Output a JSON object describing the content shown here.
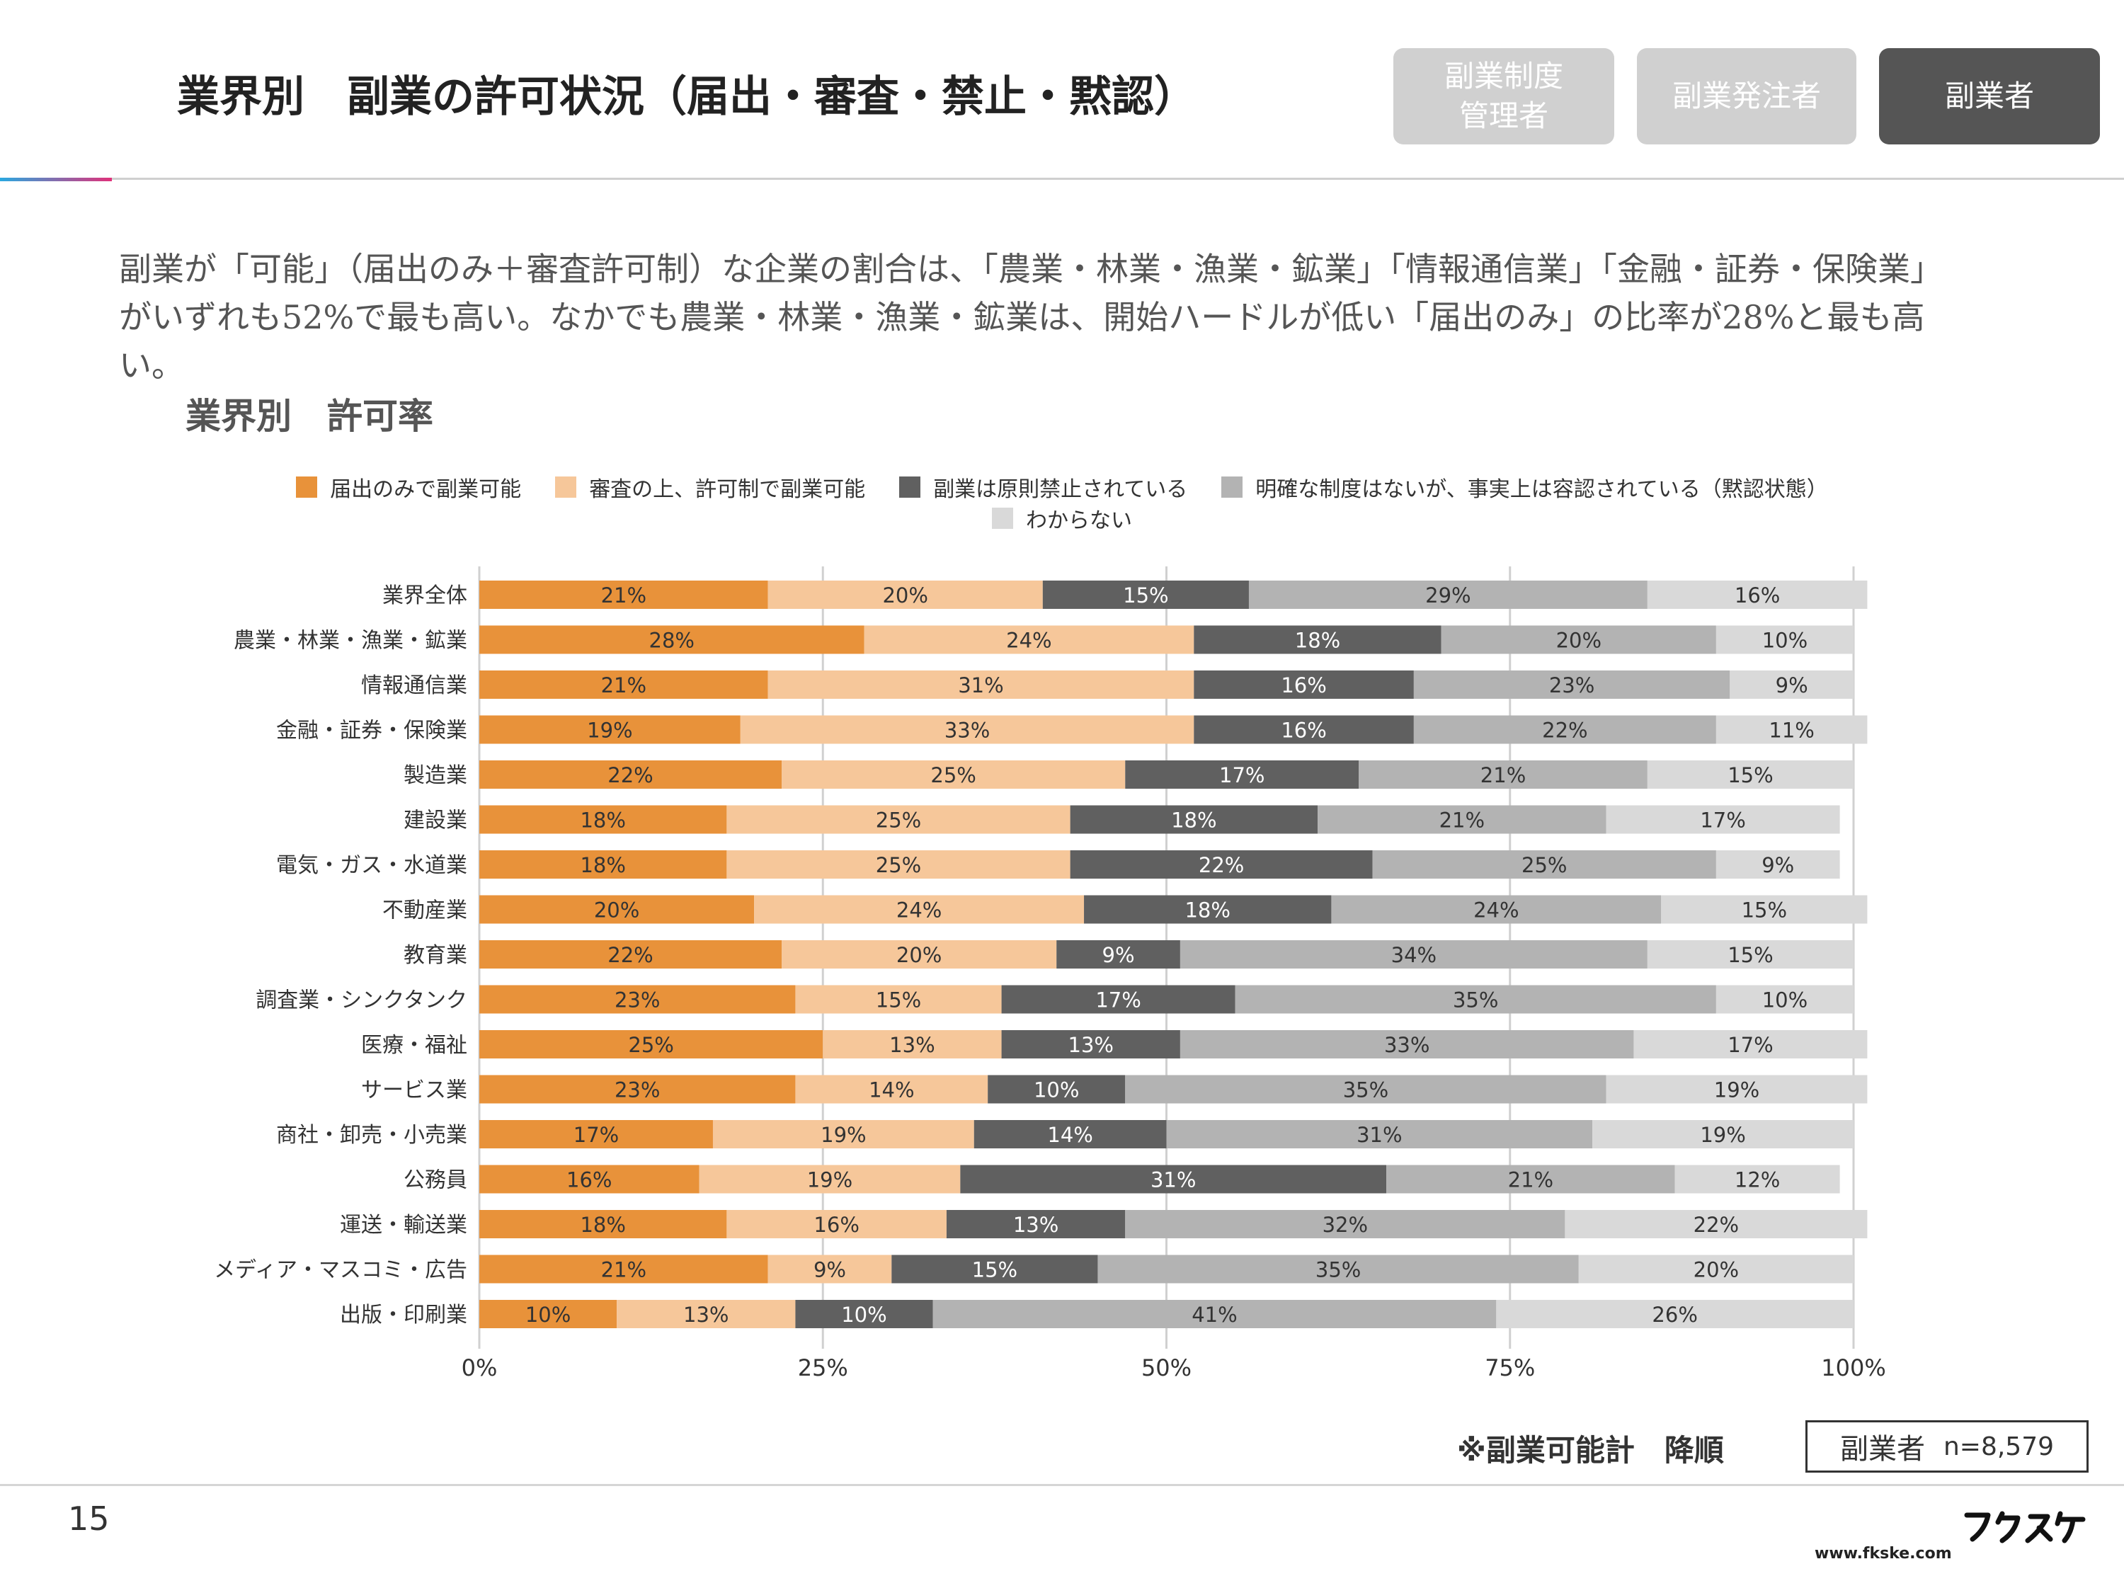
{
  "header": {
    "title": "業界別　副業の許可状況（届出・審査・禁止・黙認）",
    "tabs": [
      {
        "label": "副業制度\n管理者",
        "active": false
      },
      {
        "label": "副業発注者",
        "active": false
      },
      {
        "label": "副業者",
        "active": true
      }
    ]
  },
  "lead_text": "副業が「可能」（届出のみ＋審査許可制）な企業の割合は、「農業・林業・漁業・鉱業」「情報通信業」「金融・証券・保険業」がいずれも52%で最も高い。なかでも農業・林業・漁業・鉱業は、開始ハードルが低い「届出のみ」の比率が28%と最も高い。",
  "chart_heading": "業界別　許可率",
  "chart_data": {
    "type": "bar",
    "orientation": "horizontal",
    "stacked": true,
    "categories": [
      "業界全体",
      "農業・林業・漁業・鉱業",
      "情報通信業",
      "金融・証券・保険業",
      "製造業",
      "建設業",
      "電気・ガス・水道業",
      "不動産業",
      "教育業",
      "調査業・シンクタンク",
      "医療・福祉",
      "サービス業",
      "商社・卸売・小売業",
      "公務員",
      "運送・輸送業",
      "メディア・マスコミ・広告",
      "出版・印刷業"
    ],
    "series": [
      {
        "name": "届出のみで副業可能",
        "color": "#e8923a",
        "values": [
          21,
          28,
          21,
          19,
          22,
          18,
          18,
          20,
          22,
          23,
          25,
          23,
          17,
          16,
          18,
          21,
          10
        ]
      },
      {
        "name": "審査の上、許可制で副業可能",
        "color": "#f6c79a",
        "values": [
          20,
          24,
          31,
          33,
          25,
          25,
          25,
          24,
          20,
          15,
          13,
          14,
          19,
          19,
          16,
          9,
          13
        ]
      },
      {
        "name": "副業は原則禁止されている",
        "color": "#606060",
        "values": [
          15,
          18,
          16,
          16,
          17,
          18,
          22,
          18,
          9,
          17,
          13,
          10,
          14,
          31,
          13,
          15,
          10
        ]
      },
      {
        "name": "明確な制度はないが、事実上は容認されている（黙認状態）",
        "color": "#b3b3b3",
        "values": [
          29,
          20,
          23,
          22,
          21,
          21,
          25,
          24,
          34,
          35,
          33,
          35,
          31,
          21,
          32,
          35,
          41
        ]
      },
      {
        "name": "わからない",
        "color": "#d9d9d9",
        "values": [
          16,
          10,
          9,
          11,
          15,
          17,
          9,
          15,
          15,
          10,
          17,
          19,
          19,
          12,
          22,
          20,
          26
        ]
      }
    ],
    "xlim": [
      0,
      100
    ],
    "xticks": [
      "0%",
      "25%",
      "50%",
      "75%",
      "100%"
    ],
    "grid": true,
    "legend_position": "top"
  },
  "sort_note": "※副業可能計　降順",
  "sample": {
    "label": "副業者",
    "n": "n=8,579"
  },
  "page_number": "15",
  "site_url": "www.fkske.com"
}
